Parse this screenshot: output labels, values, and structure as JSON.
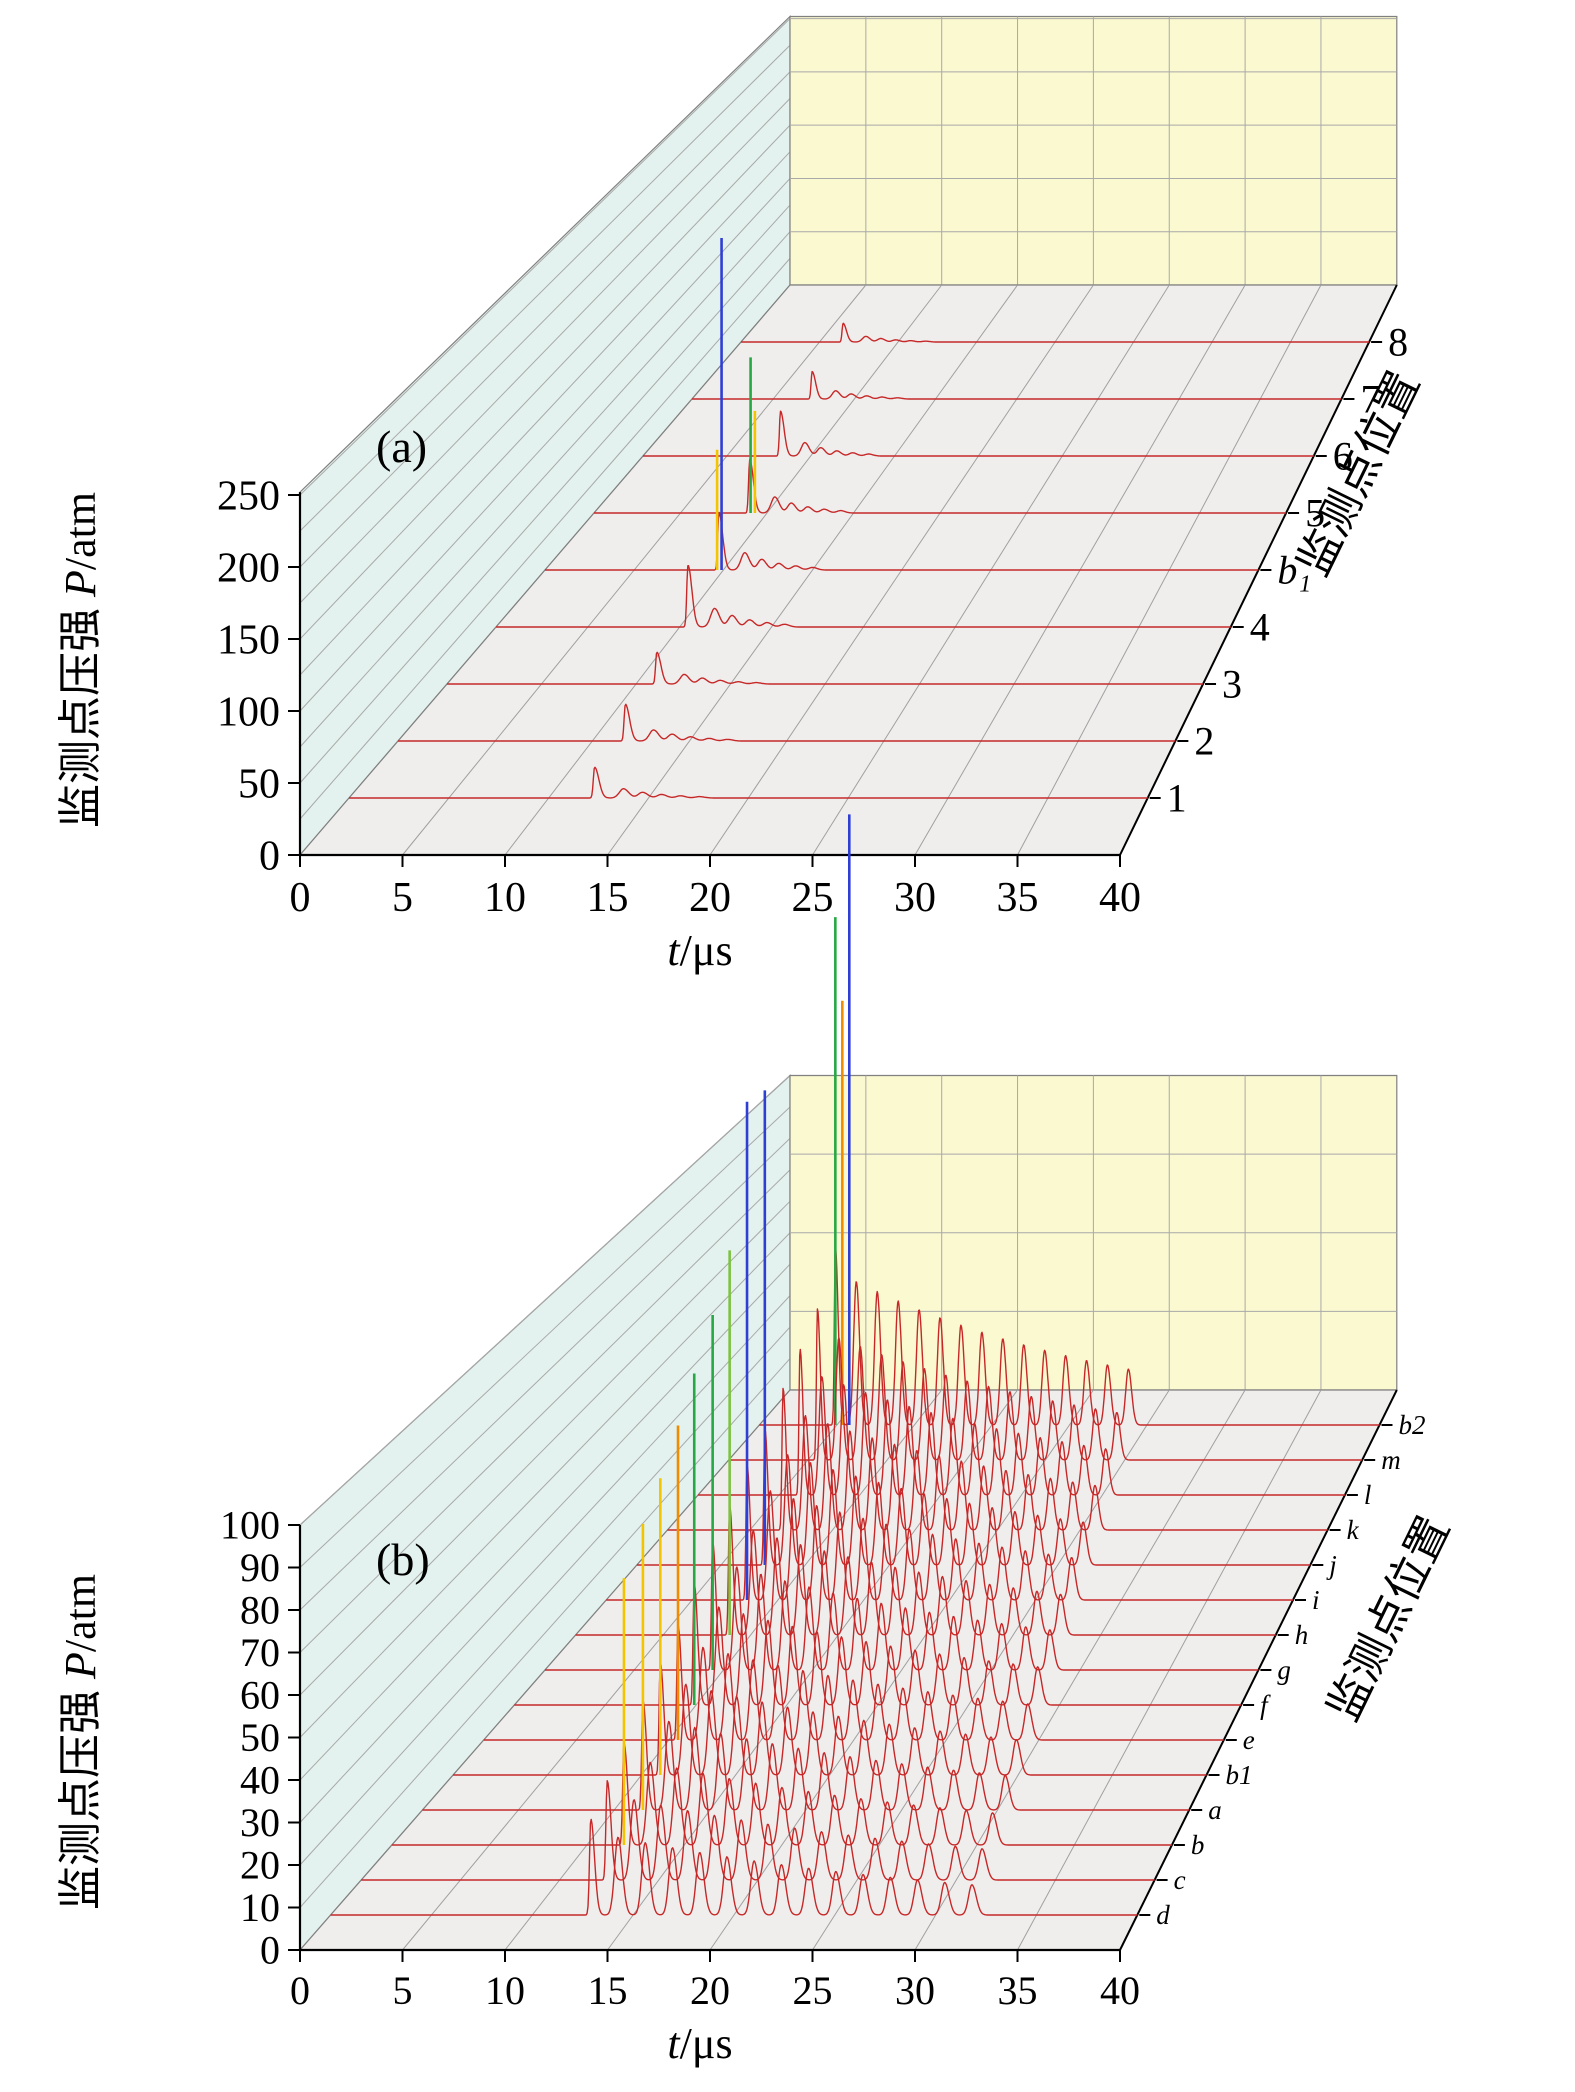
{
  "figure_title": "",
  "chart_data": [
    {
      "type": "line",
      "plot_style": "3d-waterfall",
      "panel_label": "(a)",
      "xlabel": {
        "var": "t",
        "unit": "/μs"
      },
      "ylabel": {
        "prefix": "监测点压强",
        "var": "P",
        "unit": "/atm"
      },
      "zlabel": "监测点位置",
      "xlim": [
        0,
        40
      ],
      "x_ticks": [
        0,
        5,
        10,
        15,
        20,
        25,
        30,
        35,
        40
      ],
      "ylim": [
        0,
        250
      ],
      "y_ticks": [
        0,
        50,
        100,
        150,
        200,
        250
      ],
      "grid": true,
      "legend": "none",
      "waveform": "spike",
      "oscillation": {
        "period": 0.95,
        "count": 5,
        "ratio": 0.3,
        "decay": 0.62
      },
      "z_categories_front_to_back": [
        "1",
        "2",
        "3",
        "4",
        "b₁",
        "5",
        "6",
        "7",
        "8"
      ],
      "series": [
        {
          "label": "1",
          "arrival_time_us": 12.3,
          "peak_atm": 22,
          "spikes": []
        },
        {
          "label": "2",
          "arrival_time_us": 11.7,
          "peak_atm": 27,
          "spikes": []
        },
        {
          "label": "3",
          "arrival_time_us": 11.1,
          "peak_atm": 24,
          "spikes": []
        },
        {
          "label": "4",
          "arrival_time_us": 10.45,
          "peak_atm": 48,
          "spikes": []
        },
        {
          "label": "b₁",
          "arrival_time_us": 9.75,
          "peak_atm": 46,
          "spikes": [
            {
              "t_offset_us": -0.1,
              "value_atm": 96,
              "color": "#f2c500"
            },
            {
              "t_offset_us": 0.15,
              "value_atm": 265,
              "color": "#2f3fd3"
            }
          ]
        },
        {
          "label": "5",
          "arrival_time_us": 9.0,
          "peak_atm": 44,
          "spikes": [
            {
              "t_offset_us": 0.05,
              "value_atm": 128,
              "color": "#27a844"
            },
            {
              "t_offset_us": 0.3,
              "value_atm": 84,
              "color": "#f2c500"
            }
          ]
        },
        {
          "label": "6",
          "arrival_time_us": 8.2,
          "peak_atm": 38,
          "spikes": []
        },
        {
          "label": "7",
          "arrival_time_us": 7.4,
          "peak_atm": 24,
          "spikes": []
        },
        {
          "label": "8",
          "arrival_time_us": 6.5,
          "peak_atm": 17,
          "spikes": []
        }
      ],
      "colors": {
        "left_wall": "#e3f2ee",
        "back_wall": "#fbf9d0",
        "floor": "#f0eeed",
        "grid": "#a9a9a9",
        "axis": "#000000",
        "trace": "#c62828"
      }
    },
    {
      "type": "line",
      "plot_style": "3d-waterfall",
      "panel_label": "(b)",
      "xlabel": {
        "var": "t",
        "unit": "/μs"
      },
      "ylabel": {
        "prefix": "监测点压强",
        "var": "P",
        "unit": "/atm"
      },
      "zlabel": "监测点位置",
      "xlim": [
        0,
        40
      ],
      "x_ticks": [
        0,
        5,
        10,
        15,
        20,
        25,
        30,
        35,
        40
      ],
      "ylim": [
        0,
        100
      ],
      "y_ticks": [
        0,
        10,
        20,
        30,
        40,
        50,
        60,
        70,
        80,
        90,
        100
      ],
      "grid": true,
      "legend": "none",
      "waveform": "train",
      "oscillation": {
        "period": 1.35,
        "count": 14,
        "ratio": 1.0,
        "decay": 0.93
      },
      "z_categories_front_to_back": [
        "d",
        "c",
        "b",
        "a",
        "b1",
        "e",
        "f",
        "g",
        "h",
        "i",
        "j",
        "k",
        "l",
        "m",
        "b2"
      ],
      "series": [
        {
          "label": "d",
          "arrival_time_us": 12.9,
          "peak_atm": 20,
          "spikes": []
        },
        {
          "label": "c",
          "arrival_time_us": 12.4,
          "peak_atm": 21,
          "spikes": []
        },
        {
          "label": "b",
          "arrival_time_us": 11.9,
          "peak_atm": 22,
          "spikes": [
            {
              "t_offset_us": 0.0,
              "value_atm": 66,
              "color": "#f2c500"
            }
          ]
        },
        {
          "label": "a",
          "arrival_time_us": 11.5,
          "peak_atm": 24,
          "spikes": [
            {
              "t_offset_us": 0.0,
              "value_atm": 72,
              "color": "#f2c500"
            }
          ]
        },
        {
          "label": "b1",
          "arrival_time_us": 11.0,
          "peak_atm": 25,
          "spikes": [
            {
              "t_offset_us": 0.0,
              "value_atm": 76,
              "color": "#f2c500"
            }
          ]
        },
        {
          "label": "e",
          "arrival_time_us": 10.5,
          "peak_atm": 26,
          "spikes": [
            {
              "t_offset_us": 0.0,
              "value_atm": 82,
              "color": "#f08c00"
            }
          ]
        },
        {
          "label": "f",
          "arrival_time_us": 9.9,
          "peak_atm": 28,
          "spikes": [
            {
              "t_offset_us": 0.0,
              "value_atm": 88,
              "color": "#27a844"
            }
          ]
        },
        {
          "label": "g",
          "arrival_time_us": 9.4,
          "peak_atm": 30,
          "spikes": [
            {
              "t_offset_us": 0.0,
              "value_atm": 96,
              "color": "#27a844"
            }
          ]
        },
        {
          "label": "h",
          "arrival_time_us": 8.8,
          "peak_atm": 31,
          "spikes": [
            {
              "t_offset_us": 0.0,
              "value_atm": 106,
              "color": "#7dc242"
            }
          ]
        },
        {
          "label": "i",
          "arrival_time_us": 8.2,
          "peak_atm": 33,
          "spikes": [
            {
              "t_offset_us": 0.0,
              "value_atm": 140,
              "color": "#2f3fd3"
            }
          ]
        },
        {
          "label": "j",
          "arrival_time_us": 7.6,
          "peak_atm": 34,
          "spikes": [
            {
              "t_offset_us": 0.0,
              "value_atm": 136,
              "color": "#2f3fd3"
            }
          ]
        },
        {
          "label": "k",
          "arrival_time_us": 7.0,
          "peak_atm": 36,
          "spikes": []
        },
        {
          "label": "l",
          "arrival_time_us": 6.3,
          "peak_atm": 38,
          "spikes": []
        },
        {
          "label": "m",
          "arrival_time_us": 5.6,
          "peak_atm": 40,
          "spikes": []
        },
        {
          "label": "b2",
          "arrival_time_us": 4.9,
          "peak_atm": 48,
          "spikes": [
            {
              "t_offset_us": 0.0,
              "value_atm": 158,
              "color": "#27a844"
            },
            {
              "t_offset_us": 0.45,
              "value_atm": 132,
              "color": "#f08c00"
            },
            {
              "t_offset_us": 0.9,
              "value_atm": 190,
              "color": "#2f3fd3"
            }
          ]
        }
      ],
      "colors": {
        "left_wall": "#e3f2ee",
        "back_wall": "#fbf9d0",
        "floor": "#f0eeed",
        "grid": "#a9a9a9",
        "axis": "#000000",
        "trace": "#c62828"
      }
    }
  ]
}
